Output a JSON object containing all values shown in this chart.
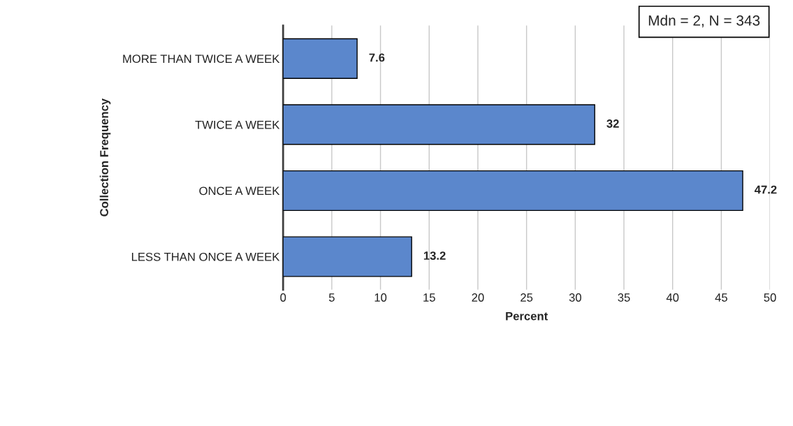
{
  "chart_data": {
    "type": "bar",
    "orientation": "horizontal",
    "categories": [
      "MORE THAN TWICE A WEEK",
      "TWICE A WEEK",
      "ONCE A WEEK",
      "LESS THAN ONCE A WEEK"
    ],
    "values": [
      7.6,
      32,
      47.2,
      13.2
    ],
    "color": "#5b87cc",
    "xlabel": "Percent",
    "ylabel": "Collection Frequency",
    "xlim": [
      0,
      50
    ],
    "xticks": [
      0,
      5,
      10,
      15,
      20,
      25,
      30,
      35,
      40,
      45,
      50
    ],
    "grid": "x",
    "data_labels": true,
    "legend": false,
    "annotations": [
      "Mdn = 2, N = 343"
    ]
  }
}
